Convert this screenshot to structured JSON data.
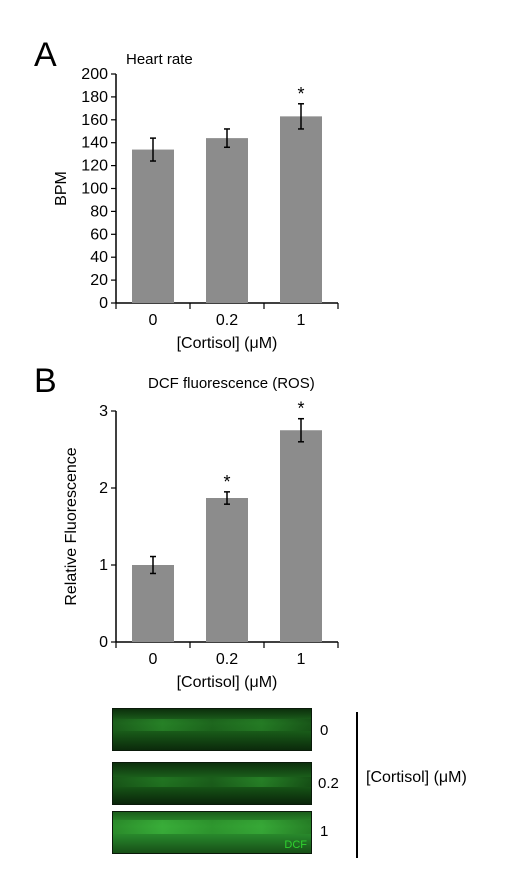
{
  "chart_data": [
    {
      "type": "bar",
      "panel": "A",
      "title": "Heart rate",
      "xlabel": "[Cortisol] (μM)",
      "ylabel": "BPM",
      "categories": [
        "0",
        "0.2",
        "1"
      ],
      "values": [
        134,
        144,
        163
      ],
      "errors": [
        10,
        8,
        11
      ],
      "significance": [
        "",
        "",
        "*"
      ],
      "ylim": [
        0,
        200
      ],
      "yticks": [
        0,
        20,
        40,
        60,
        80,
        100,
        120,
        140,
        160,
        180,
        200
      ],
      "ytick_labels": [
        "0",
        "20",
        "40",
        "60",
        "80",
        "100",
        "120",
        "140",
        "160",
        "180",
        "200"
      ],
      "bar_color": "#8c8c8c",
      "grid": false
    },
    {
      "type": "bar",
      "panel": "B",
      "title": "DCF fluorescence (ROS)",
      "xlabel": "[Cortisol] (μM)",
      "ylabel": "Relative Fluorescence",
      "categories": [
        "0",
        "0.2",
        "1"
      ],
      "values": [
        1.0,
        1.87,
        2.75
      ],
      "errors": [
        0.11,
        0.08,
        0.15
      ],
      "significance": [
        "",
        "*",
        "*"
      ],
      "ylim": [
        0,
        3
      ],
      "yticks": [
        0,
        1,
        2,
        3
      ],
      "ytick_labels": [
        "0",
        "1",
        "2",
        "3"
      ],
      "bar_color": "#8c8c8c",
      "grid": false
    }
  ],
  "micrographs": {
    "rows": [
      {
        "label": "0",
        "intensity": 0.55
      },
      {
        "label": "0.2",
        "intensity": 0.55
      },
      {
        "label": "1",
        "intensity": 0.85
      }
    ],
    "stain_label": "DCF",
    "stain_color": "#2fd12f",
    "axis_label": "[Cortisol] (μM)"
  }
}
